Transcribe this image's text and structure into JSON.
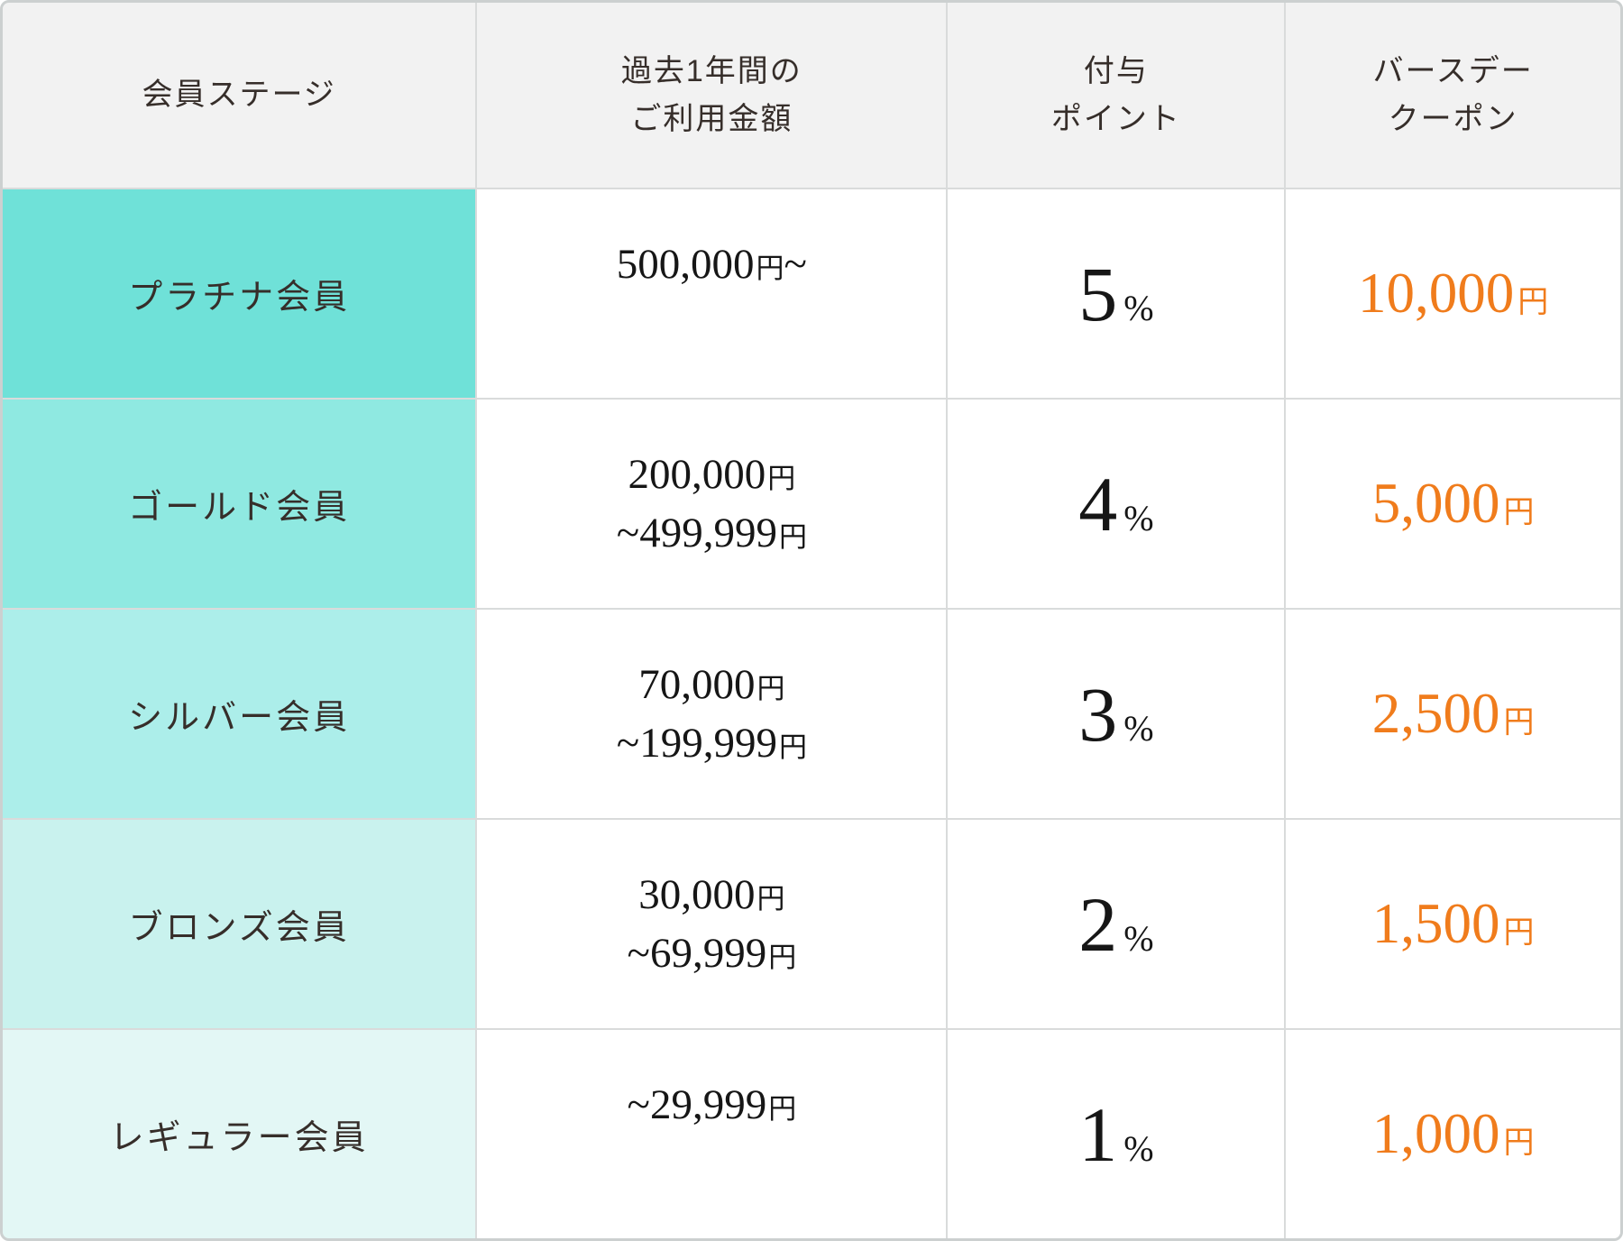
{
  "colors": {
    "accent_orange": "#f07c1c",
    "grid_line": "#d9dbdb",
    "outer_border": "#ccd0d0",
    "header_bg": "#f2f2f2",
    "stage_tints": [
      "#6fe1d8",
      "#8fe9e1",
      "#aceeea",
      "#c9f2ee",
      "#e3f7f5"
    ]
  },
  "header": {
    "stage": {
      "line1": "会員ステージ",
      "line2": ""
    },
    "amount": {
      "line1": "過去1年間の",
      "line2": "ご利用金額"
    },
    "points": {
      "line1": "付与",
      "line2": "ポイント"
    },
    "coupon": {
      "line1": "バースデー",
      "line2": "クーポン"
    }
  },
  "rows": [
    {
      "stage": "プラチナ会員",
      "amount": {
        "line1": {
          "lead": "",
          "num": "500,000",
          "unit": "円",
          "tail": "~"
        }
      },
      "points_value": "5",
      "points_unit": "%",
      "coupon_value": "10,000",
      "coupon_unit": "円"
    },
    {
      "stage": "ゴールド会員",
      "amount": {
        "line1": {
          "lead": "",
          "num": "200,000",
          "unit": "円",
          "tail": ""
        },
        "line2": {
          "lead": "~",
          "num": "499,999",
          "unit": "円"
        }
      },
      "points_value": "4",
      "points_unit": "%",
      "coupon_value": "5,000",
      "coupon_unit": "円"
    },
    {
      "stage": "シルバー会員",
      "amount": {
        "line1": {
          "lead": "",
          "num": "70,000",
          "unit": "円",
          "tail": ""
        },
        "line2": {
          "lead": "~",
          "num": "199,999",
          "unit": "円"
        }
      },
      "points_value": "3",
      "points_unit": "%",
      "coupon_value": "2,500",
      "coupon_unit": "円"
    },
    {
      "stage": "ブロンズ会員",
      "amount": {
        "line1": {
          "lead": "",
          "num": "30,000",
          "unit": "円",
          "tail": ""
        },
        "line2": {
          "lead": "~",
          "num": "69,999",
          "unit": "円"
        }
      },
      "points_value": "2",
      "points_unit": "%",
      "coupon_value": "1,500",
      "coupon_unit": "円"
    },
    {
      "stage": "レギュラー会員",
      "amount": {
        "line1": {
          "lead": "~",
          "num": "29,999",
          "unit": "円",
          "tail": ""
        }
      },
      "points_value": "1",
      "points_unit": "%",
      "coupon_value": "1,000",
      "coupon_unit": "円"
    }
  ],
  "chart_data": {
    "type": "table",
    "columns": [
      "会員ステージ",
      "過去1年間のご利用金額",
      "付与ポイント",
      "バースデークーポン"
    ],
    "rows": [
      [
        "プラチナ会員",
        "500,000円~",
        "5%",
        "10,000円"
      ],
      [
        "ゴールド会員",
        "200,000円~499,999円",
        "4%",
        "5,000円"
      ],
      [
        "シルバー会員",
        "70,000円~199,999円",
        "3%",
        "2,500円"
      ],
      [
        "ブロンズ会員",
        "30,000円~69,999円",
        "2%",
        "1,500円"
      ],
      [
        "レギュラー会員",
        "~29,999円",
        "1%",
        "1,000円"
      ]
    ]
  }
}
